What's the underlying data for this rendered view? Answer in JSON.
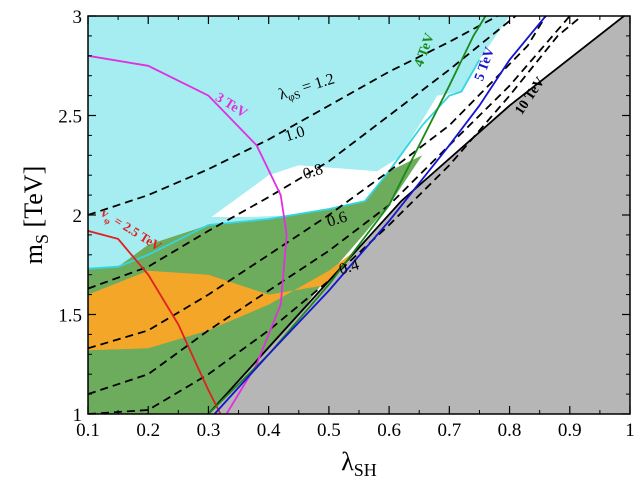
{
  "chart_data": {
    "type": "contour",
    "xlabel": "λ",
    "xlabel_sub": "SH",
    "ylabel": "m",
    "ylabel_sub": "S",
    "ylabel_unit": " [TeV]",
    "xlim": [
      0.1,
      1.0
    ],
    "ylim": [
      1.0,
      3.0
    ],
    "x_ticks": [
      "0.1",
      "0.2",
      "0.3",
      "0.4",
      "0.5",
      "0.6",
      "0.7",
      "0.8",
      "0.9",
      "1"
    ],
    "y_ticks": [
      "1",
      "1.5",
      "2",
      "2.5",
      "3"
    ],
    "regions": [
      {
        "id": "cyan",
        "color": "#a8f0f5",
        "points": [
          [
            0.1,
            1.73
          ],
          [
            0.15,
            1.74
          ],
          [
            0.2,
            1.8
          ],
          [
            0.3,
            1.92
          ],
          [
            0.4,
            1.97
          ],
          [
            0.5,
            2.05
          ],
          [
            0.55,
            2.08
          ],
          [
            0.6,
            2.2
          ],
          [
            0.65,
            2.45
          ],
          [
            0.7,
            2.6
          ],
          [
            0.72,
            2.62
          ],
          [
            0.75,
            2.78
          ],
          [
            0.8,
            3.0
          ],
          [
            0.1,
            3.0
          ]
        ]
      },
      {
        "id": "white",
        "color": "#ffffff",
        "points": [
          [
            0.305,
            1.99
          ],
          [
            0.37,
            1.99
          ],
          [
            0.45,
            2.0
          ],
          [
            0.56,
            2.07
          ],
          [
            0.6,
            2.2
          ],
          [
            0.65,
            2.45
          ],
          [
            0.68,
            2.6
          ],
          [
            0.72,
            2.62
          ],
          [
            0.74,
            2.62
          ],
          [
            0.65,
            2.35
          ],
          [
            0.58,
            2.22
          ],
          [
            0.45,
            2.25
          ],
          [
            0.4,
            2.2
          ]
        ]
      },
      {
        "id": "green",
        "color": "#6fae5e",
        "points": [
          [
            0.1,
            1.0
          ],
          [
            0.1,
            1.73
          ],
          [
            0.15,
            1.74
          ],
          [
            0.2,
            1.85
          ],
          [
            0.3,
            1.95
          ],
          [
            0.4,
            1.98
          ],
          [
            0.5,
            2.03
          ],
          [
            0.56,
            2.07
          ],
          [
            0.6,
            2.22
          ],
          [
            0.655,
            2.3
          ],
          [
            0.6,
            2.05
          ],
          [
            0.5,
            1.7
          ],
          [
            0.4,
            1.3
          ],
          [
            0.3,
            1.0
          ]
        ]
      },
      {
        "id": "orange",
        "color": "#f7a829",
        "points": [
          [
            0.1,
            1.32
          ],
          [
            0.2,
            1.33
          ],
          [
            0.3,
            1.42
          ],
          [
            0.4,
            1.55
          ],
          [
            0.5,
            1.72
          ],
          [
            0.6,
            1.95
          ],
          [
            0.7,
            2.2
          ],
          [
            0.75,
            2.32
          ],
          [
            0.745,
            2.28
          ],
          [
            0.7,
            2.1
          ],
          [
            0.6,
            1.85
          ],
          [
            0.5,
            1.65
          ],
          [
            0.4,
            1.6
          ],
          [
            0.3,
            1.7
          ],
          [
            0.2,
            1.72
          ],
          [
            0.1,
            1.6
          ]
        ]
      },
      {
        "id": "gray",
        "color": "#b9b9b9",
        "points": [
          [
            0.3,
            1.0
          ],
          [
            0.62,
            2.07
          ],
          [
            0.8,
            2.55
          ],
          [
            0.99,
            3.0
          ],
          [
            1.0,
            3.0
          ],
          [
            1.0,
            1.0
          ]
        ]
      }
    ],
    "region_borders": [
      {
        "id": "cyan-border",
        "color": "#33d6e0",
        "points": [
          [
            0.1,
            1.73
          ],
          [
            0.15,
            1.74
          ],
          [
            0.2,
            1.8
          ],
          [
            0.3,
            1.95
          ],
          [
            0.4,
            1.98
          ],
          [
            0.5,
            2.03
          ],
          [
            0.56,
            2.07
          ],
          [
            0.6,
            2.22
          ],
          [
            0.655,
            2.45
          ],
          [
            0.7,
            2.6
          ],
          [
            0.72,
            2.62
          ],
          [
            0.75,
            2.78
          ]
        ]
      },
      {
        "id": "gray-border",
        "color": "#000000",
        "points": [
          [
            0.3,
            1.0
          ],
          [
            0.62,
            2.07
          ],
          [
            0.8,
            2.55
          ],
          [
            0.99,
            3.0
          ]
        ]
      }
    ],
    "series": [
      {
        "id": "lambda-1.2",
        "color": "#000000",
        "dash": "8,5",
        "points": [
          [
            0.1,
            2.0
          ],
          [
            0.2,
            2.1
          ],
          [
            0.3,
            2.23
          ],
          [
            0.4,
            2.38
          ],
          [
            0.5,
            2.55
          ],
          [
            0.6,
            2.72
          ],
          [
            0.7,
            2.87
          ],
          [
            0.78,
            3.0
          ]
        ]
      },
      {
        "id": "lambda-1.0",
        "color": "#000000",
        "dash": "8,5",
        "points": [
          [
            0.1,
            1.63
          ],
          [
            0.2,
            1.74
          ],
          [
            0.3,
            1.92
          ],
          [
            0.4,
            2.09
          ],
          [
            0.5,
            2.27
          ],
          [
            0.6,
            2.5
          ],
          [
            0.7,
            2.73
          ],
          [
            0.81,
            3.0
          ]
        ]
      },
      {
        "id": "lambda-0.8",
        "color": "#000000",
        "dash": "8,5",
        "points": [
          [
            0.1,
            1.33
          ],
          [
            0.2,
            1.42
          ],
          [
            0.3,
            1.6
          ],
          [
            0.4,
            1.8
          ],
          [
            0.5,
            2.0
          ],
          [
            0.6,
            2.22
          ],
          [
            0.7,
            2.45
          ],
          [
            0.83,
            2.85
          ],
          [
            0.86,
            3.0
          ]
        ]
      },
      {
        "id": "lambda-0.6",
        "color": "#000000",
        "dash": "8,5",
        "points": [
          [
            0.1,
            1.1
          ],
          [
            0.2,
            1.2
          ],
          [
            0.3,
            1.42
          ],
          [
            0.4,
            1.62
          ],
          [
            0.5,
            1.82
          ],
          [
            0.6,
            2.05
          ],
          [
            0.7,
            2.35
          ],
          [
            0.8,
            2.65
          ],
          [
            0.9,
            3.0
          ]
        ]
      },
      {
        "id": "lambda-0.4",
        "color": "#000000",
        "dash": "8,5",
        "points": [
          [
            0.1,
            1.0
          ],
          [
            0.2,
            1.02
          ],
          [
            0.3,
            1.2
          ],
          [
            0.4,
            1.42
          ],
          [
            0.5,
            1.67
          ],
          [
            0.6,
            1.95
          ],
          [
            0.7,
            2.25
          ],
          [
            0.8,
            2.6
          ],
          [
            0.88,
            2.9
          ],
          [
            0.92,
            3.0
          ]
        ]
      },
      {
        "id": "vphi-2.5",
        "color": "#e02020",
        "dash": "",
        "points": [
          [
            0.1,
            1.92
          ],
          [
            0.15,
            1.88
          ],
          [
            0.2,
            1.7
          ],
          [
            0.25,
            1.45
          ],
          [
            0.28,
            1.25
          ],
          [
            0.3,
            1.12
          ],
          [
            0.32,
            1.0
          ]
        ]
      },
      {
        "id": "vphi-3",
        "color": "#e030e0",
        "dash": "",
        "points": [
          [
            0.1,
            2.8
          ],
          [
            0.2,
            2.75
          ],
          [
            0.3,
            2.6
          ],
          [
            0.38,
            2.35
          ],
          [
            0.42,
            2.1
          ],
          [
            0.43,
            1.9
          ],
          [
            0.42,
            1.55
          ],
          [
            0.38,
            1.25
          ],
          [
            0.33,
            1.0
          ]
        ]
      },
      {
        "id": "vphi-4",
        "color": "#1a8a1a",
        "dash": "",
        "points": [
          [
            0.3,
            1.0
          ],
          [
            0.4,
            1.3
          ],
          [
            0.5,
            1.65
          ],
          [
            0.6,
            2.05
          ],
          [
            0.65,
            2.35
          ],
          [
            0.7,
            2.65
          ],
          [
            0.74,
            2.9
          ],
          [
            0.76,
            3.0
          ]
        ]
      },
      {
        "id": "vphi-5",
        "color": "#1515d0",
        "dash": "",
        "points": [
          [
            0.31,
            1.0
          ],
          [
            0.4,
            1.3
          ],
          [
            0.5,
            1.62
          ],
          [
            0.6,
            1.97
          ],
          [
            0.7,
            2.35
          ],
          [
            0.75,
            2.55
          ],
          [
            0.8,
            2.78
          ],
          [
            0.86,
            3.0
          ]
        ]
      }
    ],
    "annotations": [
      {
        "id": "label-lambda-12",
        "text": "λ",
        "sub": "φS",
        "rest": " = 1.2",
        "x": 0.42,
        "y": 2.58,
        "rotate": -17,
        "color": "#000000",
        "size": 16,
        "bold": false
      },
      {
        "id": "label-10",
        "text": "1.0",
        "x": 0.43,
        "y": 2.37,
        "rotate": -17,
        "color": "#000000",
        "size": 16,
        "bold": false
      },
      {
        "id": "label-08",
        "text": "0.8",
        "x": 0.46,
        "y": 2.18,
        "rotate": -17,
        "color": "#000000",
        "size": 16,
        "bold": false
      },
      {
        "id": "label-06",
        "text": "0.6",
        "x": 0.5,
        "y": 1.94,
        "rotate": -17,
        "color": "#000000",
        "size": 16,
        "bold": false
      },
      {
        "id": "label-04",
        "text": "0.4",
        "x": 0.52,
        "y": 1.7,
        "rotate": -17,
        "color": "#000000",
        "size": 16,
        "bold": false
      },
      {
        "id": "label-3tev",
        "text": "3 TeV",
        "x": 0.31,
        "y": 2.58,
        "rotate": 32,
        "color": "#e030e0",
        "size": 14,
        "bold": true
      },
      {
        "id": "label-25tev",
        "text": "v",
        "sub": "φ",
        "rest": " = 2.5 TeV",
        "x": 0.12,
        "y": 2.0,
        "rotate": 32,
        "color": "#e02020",
        "size": 13,
        "bold": true
      },
      {
        "id": "label-4tev",
        "text": "4 TeV",
        "x": 0.655,
        "y": 2.74,
        "rotate": -70,
        "color": "#1a8a1a",
        "size": 14,
        "bold": true
      },
      {
        "id": "label-5tev",
        "text": "5 TeV",
        "x": 0.755,
        "y": 2.67,
        "rotate": -70,
        "color": "#1515d0",
        "size": 14,
        "bold": true
      },
      {
        "id": "label-10tev",
        "text": "10 TeV",
        "x": 0.82,
        "y": 2.5,
        "rotate": -56,
        "color": "#000000",
        "size": 14,
        "bold": true
      }
    ]
  }
}
